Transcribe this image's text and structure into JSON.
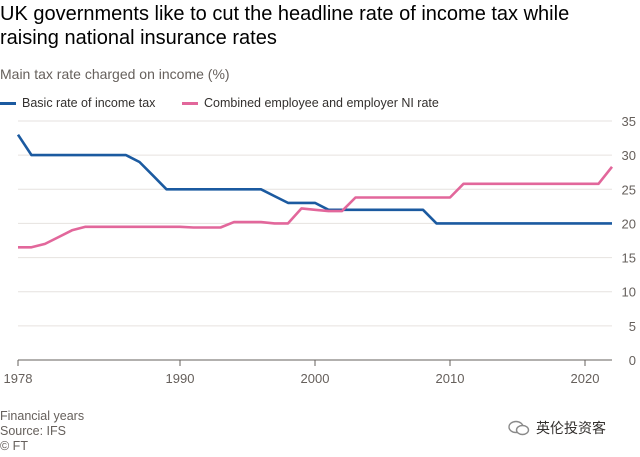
{
  "title": "UK governments like to cut the headline rate of income tax while raising national insurance rates",
  "subtitle": "Main tax rate charged on income (%)",
  "footer": {
    "note": "Financial years",
    "source": "Source: IFS",
    "copyright": "© FT"
  },
  "watermark": {
    "text": "英伦投资客",
    "icon": "wechat-logo-icon"
  },
  "colors": {
    "income_tax": "#1b5aa0",
    "ni_rate": "#e2679b",
    "grid": "#e6e2df",
    "axis": "#66605c"
  },
  "chart_data": {
    "type": "line",
    "title": "UK governments like to cut the headline rate of income tax while raising national insurance rates",
    "subtitle": "Main tax rate charged on income (%)",
    "xlabel": "Financial years",
    "ylabel": "",
    "xlim": [
      1978,
      2022
    ],
    "ylim": [
      0,
      35
    ],
    "x_ticks": [
      1978,
      1990,
      2000,
      2010,
      2020
    ],
    "y_ticks": [
      0,
      5,
      10,
      15,
      20,
      25,
      30,
      35
    ],
    "y_axis_side": "right",
    "grid": true,
    "legend_position": "top-left",
    "series": [
      {
        "name": "Basic rate of income tax",
        "color": "#1b5aa0",
        "points": [
          [
            1978,
            33
          ],
          [
            1979,
            30
          ],
          [
            1986,
            30
          ],
          [
            1987,
            29
          ],
          [
            1988,
            27
          ],
          [
            1989,
            25
          ],
          [
            1996,
            25
          ],
          [
            1997,
            24
          ],
          [
            1998,
            23
          ],
          [
            2000,
            23
          ],
          [
            2001,
            22
          ],
          [
            2008,
            22
          ],
          [
            2009,
            20
          ],
          [
            2022,
            20
          ]
        ]
      },
      {
        "name": "Combined employee and employer NI rate",
        "color": "#e2679b",
        "points": [
          [
            1978,
            16.5
          ],
          [
            1979,
            16.5
          ],
          [
            1980,
            17
          ],
          [
            1981,
            18
          ],
          [
            1982,
            19
          ],
          [
            1983,
            19.5
          ],
          [
            1990,
            19.5
          ],
          [
            1991,
            19.4
          ],
          [
            1993,
            19.4
          ],
          [
            1994,
            20.2
          ],
          [
            1996,
            20.2
          ],
          [
            1997,
            20
          ],
          [
            1998,
            20
          ],
          [
            1999,
            22.2
          ],
          [
            2000,
            22
          ],
          [
            2001,
            21.8
          ],
          [
            2002,
            21.8
          ],
          [
            2003,
            23.8
          ],
          [
            2010,
            23.8
          ],
          [
            2011,
            25.8
          ],
          [
            2021,
            25.8
          ],
          [
            2022,
            28.3
          ]
        ]
      }
    ]
  }
}
